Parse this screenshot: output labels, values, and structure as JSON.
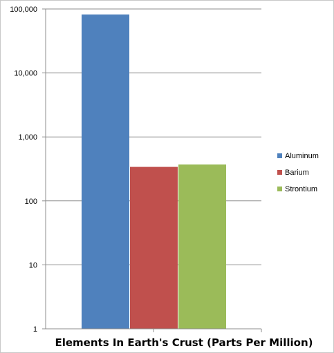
{
  "chart_data": {
    "type": "bar",
    "title": "",
    "xlabel": "Elements In Earth's Crust (Parts Per Million)",
    "ylabel": "",
    "yscale": "log",
    "ylim": [
      1,
      100000
    ],
    "yticks": [
      1,
      10,
      100,
      1000,
      10000,
      100000
    ],
    "ytick_labels": [
      "1",
      "10",
      "100",
      "1,000",
      "10,000",
      "100,000"
    ],
    "grid": true,
    "legend": "right",
    "categories": [
      ""
    ],
    "series": [
      {
        "name": "Aluminum",
        "values": [
          82000
        ],
        "color": "#4f81bd"
      },
      {
        "name": "Barium",
        "values": [
          340
        ],
        "color": "#c0504d"
      },
      {
        "name": "Strontium",
        "values": [
          370
        ],
        "color": "#9bbb59"
      }
    ]
  }
}
